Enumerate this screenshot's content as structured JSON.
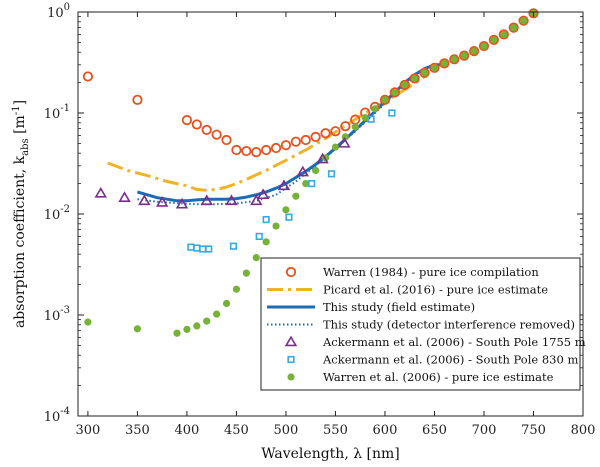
{
  "chart_data": {
    "type": "scatter",
    "xlabel": "Wavelength, λ [nm]",
    "ylabel_main": "absorption coefficient, k",
    "ylabel_sub": "abs",
    "ylabel_unit": " [m",
    "ylabel_unit_sup": "-1",
    "ylabel_close": "]",
    "xlim": [
      290,
      800
    ],
    "ylim": [
      0.0001,
      1
    ],
    "yscale": "log",
    "grid": false,
    "legend_position": "bottom-right",
    "xticks": [
      300,
      350,
      400,
      450,
      500,
      550,
      600,
      650,
      700,
      750,
      800
    ],
    "yticks": [
      {
        "value": 0.0001,
        "base": "10",
        "exp": "-4"
      },
      {
        "value": 0.001,
        "base": "10",
        "exp": "-3"
      },
      {
        "value": 0.01,
        "base": "10",
        "exp": "-2"
      },
      {
        "value": 0.1,
        "base": "10",
        "exp": "-1"
      },
      {
        "value": 1,
        "base": "10",
        "exp": "0"
      }
    ],
    "series": [
      {
        "name": "Warren (1984) - pure ice compilation",
        "kind": "marker",
        "marker": "circle-open",
        "color": "#e8501e",
        "x": [
          300,
          350,
          400,
          410,
          420,
          430,
          440,
          450,
          460,
          470,
          480,
          490,
          500,
          510,
          520,
          530,
          540,
          550,
          560,
          570,
          580,
          590,
          600,
          610,
          620,
          630,
          640,
          650,
          660,
          670,
          680,
          690,
          700,
          710,
          720,
          730,
          740,
          750
        ],
        "y": [
          0.23,
          0.135,
          0.085,
          0.077,
          0.068,
          0.061,
          0.054,
          0.043,
          0.042,
          0.041,
          0.043,
          0.045,
          0.048,
          0.052,
          0.054,
          0.058,
          0.063,
          0.066,
          0.074,
          0.086,
          0.101,
          0.115,
          0.135,
          0.16,
          0.19,
          0.22,
          0.25,
          0.28,
          0.31,
          0.34,
          0.37,
          0.41,
          0.46,
          0.53,
          0.6,
          0.7,
          0.82,
          0.97
        ]
      },
      {
        "name": "Picard et al. (2016) - pure ice estimate",
        "kind": "line",
        "dash": "dashdot",
        "color": "#f0b323",
        "x": [
          320,
          340,
          360,
          380,
          400,
          410,
          420,
          430,
          440,
          450,
          460,
          480,
          500,
          520,
          540,
          560,
          580,
          600,
          620,
          640
        ],
        "y": [
          0.032,
          0.027,
          0.024,
          0.021,
          0.019,
          0.0175,
          0.0172,
          0.0175,
          0.0185,
          0.02,
          0.022,
          0.027,
          0.034,
          0.043,
          0.056,
          0.075,
          0.1,
          0.13,
          0.17,
          0.23
        ]
      },
      {
        "name": "This study (field estimate)",
        "kind": "line",
        "dash": "solid",
        "color": "#1b6bb6",
        "x": [
          350,
          360,
          370,
          380,
          390,
          400,
          410,
          420,
          430,
          440,
          450,
          460,
          470,
          480,
          490,
          500,
          510,
          520,
          530,
          540,
          550,
          560,
          570,
          580,
          590,
          600,
          610,
          620,
          630,
          640,
          650,
          660
        ],
        "y": [
          0.0165,
          0.0155,
          0.0145,
          0.014,
          0.0135,
          0.0135,
          0.0138,
          0.014,
          0.014,
          0.014,
          0.0142,
          0.0147,
          0.0155,
          0.0165,
          0.018,
          0.02,
          0.023,
          0.0265,
          0.031,
          0.037,
          0.045,
          0.055,
          0.068,
          0.084,
          0.104,
          0.13,
          0.16,
          0.2,
          0.24,
          0.275,
          0.3,
          0.3
        ]
      },
      {
        "name": "This study (detector interference removed)",
        "kind": "line",
        "dash": "dotted",
        "color": "#1b6bb6",
        "x": [
          350,
          370,
          390,
          410,
          430,
          450,
          470,
          490,
          510,
          530,
          550,
          570,
          590,
          610,
          630,
          650,
          660
        ],
        "y": [
          0.014,
          0.0132,
          0.0128,
          0.0125,
          0.0125,
          0.0127,
          0.0135,
          0.0155,
          0.021,
          0.03,
          0.044,
          0.066,
          0.1,
          0.155,
          0.23,
          0.29,
          0.3
        ]
      },
      {
        "name": "Ackermann et al. (2006) - South Pole 1755 m",
        "kind": "marker",
        "marker": "triangle-open",
        "color": "#7b2d8e",
        "x": [
          313,
          337,
          357,
          375,
          395,
          420,
          445,
          470,
          477,
          498,
          517,
          537,
          559
        ],
        "y": [
          0.016,
          0.0145,
          0.0135,
          0.013,
          0.0125,
          0.0135,
          0.0135,
          0.0135,
          0.0155,
          0.019,
          0.026,
          0.035,
          0.05
        ]
      },
      {
        "name": "Ackermann et al. (2006) - South Pole 830 m",
        "kind": "marker",
        "marker": "square-open",
        "color": "#38a8e0",
        "x": [
          404,
          410,
          416,
          422,
          447,
          473,
          480,
          503,
          526,
          546,
          586,
          607
        ],
        "y": [
          0.0047,
          0.0046,
          0.0045,
          0.0045,
          0.0048,
          0.006,
          0.0088,
          0.0093,
          0.02,
          0.025,
          0.087,
          0.1
        ]
      },
      {
        "name": "Warren et al. (2006) - pure ice estimate",
        "kind": "marker",
        "marker": "circle-filled",
        "color": "#77b136",
        "x": [
          300,
          350,
          390,
          400,
          410,
          420,
          430,
          440,
          450,
          460,
          470,
          480,
          490,
          500,
          510,
          520,
          530,
          540,
          550,
          560,
          570,
          580,
          590,
          600,
          610,
          620,
          630,
          640,
          650,
          660,
          670,
          680,
          690,
          700,
          710,
          720,
          730,
          740,
          750
        ],
        "y": [
          0.00085,
          0.00073,
          0.00066,
          0.00072,
          0.00078,
          0.00087,
          0.00102,
          0.0013,
          0.0018,
          0.0026,
          0.0037,
          0.0053,
          0.0076,
          0.011,
          0.015,
          0.02,
          0.027,
          0.036,
          0.046,
          0.058,
          0.073,
          0.09,
          0.11,
          0.135,
          0.16,
          0.19,
          0.22,
          0.25,
          0.28,
          0.31,
          0.34,
          0.37,
          0.41,
          0.46,
          0.53,
          0.6,
          0.7,
          0.82,
          0.97
        ]
      }
    ]
  }
}
